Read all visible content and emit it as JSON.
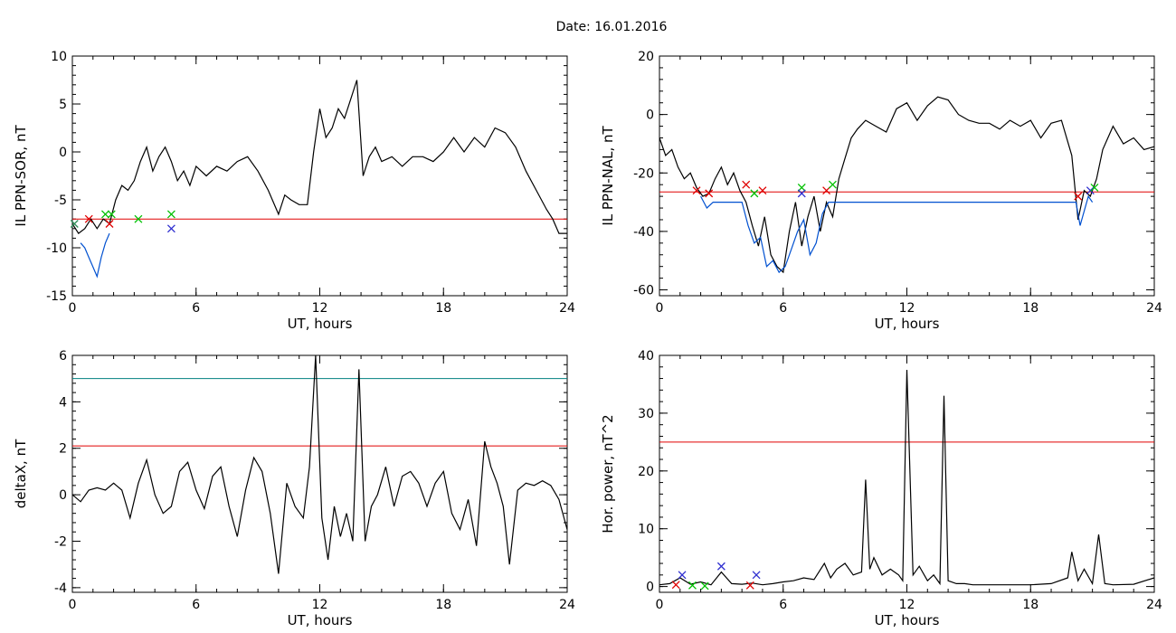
{
  "figure_title": "Date:  16.01.2016",
  "chart_data": [
    {
      "type": "line",
      "xlabel": "UT, hours",
      "ylabel": "IL PPN-SOR, nT",
      "xlim": [
        0,
        24
      ],
      "ylim": [
        -15,
        10
      ],
      "xticks": [
        0,
        6,
        12,
        18,
        24
      ],
      "xtick_labels": [
        "0",
        "6",
        "12",
        "18",
        "24"
      ],
      "yticks": [
        -15,
        -10,
        -5,
        0,
        5,
        10
      ],
      "ytick_labels": [
        "-15",
        "-10",
        "-5",
        "0",
        "5",
        "10"
      ],
      "thresholds": [
        {
          "value": -7,
          "color": "#e00000"
        }
      ],
      "series": [
        {
          "color": "#000000",
          "x": [
            0,
            0.3,
            0.6,
            0.9,
            1.2,
            1.5,
            1.8,
            2.1,
            2.4,
            2.7,
            3.0,
            3.3,
            3.6,
            3.9,
            4.2,
            4.5,
            4.8,
            5.1,
            5.4,
            5.7,
            6.0,
            6.5,
            7.0,
            7.5,
            8.0,
            8.5,
            9.0,
            9.5,
            10.0,
            10.3,
            10.6,
            11.0,
            11.4,
            11.7,
            12.0,
            12.3,
            12.6,
            12.9,
            13.2,
            13.5,
            13.8,
            14.1,
            14.4,
            14.7,
            15.0,
            15.5,
            16.0,
            16.5,
            17.0,
            17.5,
            18.0,
            18.5,
            19.0,
            19.5,
            20.0,
            20.5,
            21.0,
            21.5,
            22.0,
            22.5,
            23.0,
            23.3,
            23.6,
            24.0
          ],
          "y": [
            -7.5,
            -8.5,
            -8.0,
            -7.0,
            -8.0,
            -7.0,
            -7.5,
            -5.0,
            -3.5,
            -4.0,
            -3.0,
            -1.0,
            0.5,
            -2.0,
            -0.5,
            0.5,
            -1.0,
            -3.0,
            -2.0,
            -3.5,
            -1.5,
            -2.5,
            -1.5,
            -2.0,
            -1.0,
            -0.5,
            -2.0,
            -4.0,
            -6.5,
            -4.5,
            -5.0,
            -5.5,
            -5.5,
            0.0,
            4.5,
            1.5,
            2.5,
            4.5,
            3.5,
            5.5,
            7.5,
            -2.5,
            -0.5,
            0.5,
            -1.0,
            -0.5,
            -1.5,
            -0.5,
            -0.5,
            -1.0,
            0.0,
            1.5,
            0.0,
            1.5,
            0.5,
            2.5,
            2.0,
            0.5,
            -2.0,
            -4.0,
            -6.0,
            -7.0,
            -8.5,
            -8.5
          ]
        },
        {
          "color": "#0050d0",
          "x": [
            0.4,
            0.6,
            0.8,
            1.0,
            1.2,
            1.4,
            1.6,
            1.8
          ],
          "y": [
            -9.5,
            -10.0,
            -11.0,
            -12.0,
            -13.0,
            -11.0,
            -9.5,
            -8.5
          ]
        }
      ],
      "markers": [
        {
          "x": 0.1,
          "y": -7.5,
          "color": "#2e8b57"
        },
        {
          "x": 0.8,
          "y": -7.0,
          "color": "#e00000"
        },
        {
          "x": 1.6,
          "y": -6.5,
          "color": "#00c000"
        },
        {
          "x": 1.8,
          "y": -7.5,
          "color": "#e00000"
        },
        {
          "x": 3.2,
          "y": -7.0,
          "color": "#00c000"
        },
        {
          "x": 4.8,
          "y": -6.5,
          "color": "#00c000"
        },
        {
          "x": 4.8,
          "y": -8.0,
          "color": "#3030d0"
        },
        {
          "x": 1.9,
          "y": -6.5,
          "color": "#00c000"
        }
      ]
    },
    {
      "type": "line",
      "xlabel": "UT, hours",
      "ylabel": "IL PPN-NAL, nT",
      "xlim": [
        0,
        24
      ],
      "ylim": [
        -62,
        20
      ],
      "xticks": [
        0,
        6,
        12,
        18,
        24
      ],
      "xtick_labels": [
        "0",
        "6",
        "12",
        "18",
        "24"
      ],
      "yticks": [
        -60,
        -40,
        -20,
        0,
        20
      ],
      "ytick_labels": [
        "-60",
        "-40",
        "-20",
        "0",
        "20"
      ],
      "thresholds": [
        {
          "value": -26.5,
          "color": "#e00000"
        }
      ],
      "series": [
        {
          "color": "#000000",
          "x": [
            0,
            0.3,
            0.6,
            0.9,
            1.2,
            1.5,
            1.8,
            2.1,
            2.4,
            2.7,
            3.0,
            3.3,
            3.6,
            3.9,
            4.2,
            4.5,
            4.8,
            5.1,
            5.4,
            5.7,
            6.0,
            6.3,
            6.6,
            6.9,
            7.2,
            7.5,
            7.8,
            8.1,
            8.4,
            8.7,
            9.0,
            9.3,
            9.6,
            10.0,
            10.5,
            11.0,
            11.5,
            12.0,
            12.5,
            13.0,
            13.5,
            14.0,
            14.5,
            15.0,
            15.5,
            16.0,
            16.5,
            17.0,
            17.5,
            18.0,
            18.5,
            19.0,
            19.5,
            20.0,
            20.3,
            20.6,
            20.9,
            21.2,
            21.5,
            22.0,
            22.5,
            23.0,
            23.5,
            24.0
          ],
          "y": [
            -8,
            -14,
            -12,
            -18,
            -22,
            -20,
            -25,
            -28,
            -27,
            -22,
            -18,
            -24,
            -20,
            -26,
            -30,
            -38,
            -45,
            -35,
            -48,
            -52,
            -54,
            -40,
            -30,
            -45,
            -35,
            -28,
            -40,
            -30,
            -35,
            -22,
            -15,
            -8,
            -5,
            -2,
            -4,
            -6,
            2,
            4,
            -2,
            3,
            6,
            5,
            0,
            -2,
            -3,
            -3,
            -5,
            -2,
            -4,
            -2,
            -8,
            -3,
            -2,
            -14,
            -36,
            -26,
            -28,
            -22,
            -12,
            -4,
            -10,
            -8,
            -12,
            -11
          ]
        },
        {
          "color": "#0050d0",
          "x": [
            2.0,
            2.3,
            2.6,
            4.0,
            4.3,
            4.6,
            4.9,
            5.2,
            5.5,
            5.8,
            6.1,
            6.4,
            6.7,
            7.0,
            7.3,
            7.6,
            7.9,
            8.2,
            20.2,
            20.4,
            20.8,
            21.0
          ],
          "y": [
            -28,
            -32,
            -30,
            -30,
            -38,
            -44,
            -42,
            -52,
            -50,
            -54,
            -52,
            -46,
            -40,
            -36,
            -48,
            -44,
            -34,
            -30,
            -30,
            -38,
            -28,
            -30
          ]
        }
      ],
      "markers": [
        {
          "x": 1.8,
          "y": -26,
          "color": "#e00000"
        },
        {
          "x": 2.4,
          "y": -27,
          "color": "#e00000"
        },
        {
          "x": 4.2,
          "y": -24,
          "color": "#e00000"
        },
        {
          "x": 4.6,
          "y": -27,
          "color": "#00c000"
        },
        {
          "x": 5.0,
          "y": -26,
          "color": "#e00000"
        },
        {
          "x": 6.9,
          "y": -25,
          "color": "#00c000"
        },
        {
          "x": 6.9,
          "y": -27,
          "color": "#3030d0"
        },
        {
          "x": 8.1,
          "y": -26,
          "color": "#e00000"
        },
        {
          "x": 8.4,
          "y": -24,
          "color": "#00c000"
        },
        {
          "x": 20.3,
          "y": -28,
          "color": "#e00000"
        },
        {
          "x": 20.9,
          "y": -26,
          "color": "#3030d0"
        },
        {
          "x": 21.1,
          "y": -25,
          "color": "#00c000"
        }
      ]
    },
    {
      "type": "line",
      "xlabel": "UT, hours",
      "ylabel": "deltaX, nT",
      "xlim": [
        0,
        24
      ],
      "ylim": [
        -4.2,
        6
      ],
      "xticks": [
        0,
        6,
        12,
        18,
        24
      ],
      "xtick_labels": [
        "0",
        "6",
        "12",
        "18",
        "24"
      ],
      "yticks": [
        -4,
        -2,
        0,
        2,
        4,
        6
      ],
      "ytick_labels": [
        "-4",
        "-2",
        "0",
        "2",
        "4",
        "6"
      ],
      "thresholds": [
        {
          "value": 5.0,
          "color": "#008080"
        },
        {
          "value": 2.1,
          "color": "#e00000"
        }
      ],
      "series": [
        {
          "color": "#000000",
          "x": [
            0,
            0.4,
            0.8,
            1.2,
            1.6,
            2.0,
            2.4,
            2.8,
            3.2,
            3.6,
            4.0,
            4.4,
            4.8,
            5.2,
            5.6,
            6.0,
            6.4,
            6.8,
            7.2,
            7.6,
            8.0,
            8.4,
            8.8,
            9.2,
            9.6,
            10.0,
            10.4,
            10.8,
            11.2,
            11.5,
            11.8,
            12.1,
            12.4,
            12.7,
            13.0,
            13.3,
            13.6,
            13.9,
            14.2,
            14.5,
            14.8,
            15.2,
            15.6,
            16.0,
            16.4,
            16.8,
            17.2,
            17.6,
            18.0,
            18.4,
            18.8,
            19.2,
            19.6,
            20.0,
            20.3,
            20.6,
            20.9,
            21.2,
            21.6,
            22.0,
            22.4,
            22.8,
            23.2,
            23.6,
            24.0
          ],
          "y": [
            0.0,
            -0.3,
            0.2,
            0.3,
            0.2,
            0.5,
            0.2,
            -1.0,
            0.5,
            1.5,
            0.0,
            -0.8,
            -0.5,
            1.0,
            1.4,
            0.2,
            -0.6,
            0.8,
            1.2,
            -0.5,
            -1.8,
            0.2,
            1.6,
            1.0,
            -0.8,
            -3.4,
            0.5,
            -0.5,
            -1.0,
            1.2,
            6.0,
            -1.0,
            -2.8,
            -0.5,
            -1.8,
            -0.8,
            -2.0,
            5.4,
            -2.0,
            -0.5,
            0.0,
            1.2,
            -0.5,
            0.8,
            1.0,
            0.5,
            -0.5,
            0.5,
            1.0,
            -0.8,
            -1.5,
            -0.2,
            -2.2,
            2.3,
            1.2,
            0.5,
            -0.5,
            -3.0,
            0.2,
            0.5,
            0.4,
            0.6,
            0.4,
            -0.2,
            -1.5
          ]
        }
      ]
    },
    {
      "type": "line",
      "xlabel": "UT, hours",
      "ylabel": "Hor. power, nT^2",
      "xlim": [
        0,
        24
      ],
      "ylim": [
        -1,
        40
      ],
      "xticks": [
        0,
        6,
        12,
        18,
        24
      ],
      "xtick_labels": [
        "0",
        "6",
        "12",
        "18",
        "24"
      ],
      "yticks": [
        0,
        10,
        20,
        30,
        40
      ],
      "ytick_labels": [
        "0",
        "10",
        "20",
        "30",
        "40"
      ],
      "thresholds": [
        {
          "value": 25,
          "color": "#e00000"
        }
      ],
      "series": [
        {
          "color": "#000000",
          "x": [
            0,
            0.5,
            1.0,
            1.5,
            2.0,
            2.5,
            3.0,
            3.5,
            4.0,
            4.5,
            5.0,
            5.5,
            6.0,
            6.5,
            7.0,
            7.5,
            8.0,
            8.3,
            8.6,
            9.0,
            9.4,
            9.8,
            10.0,
            10.2,
            10.4,
            10.8,
            11.2,
            11.6,
            11.8,
            12.0,
            12.3,
            12.6,
            13.0,
            13.3,
            13.6,
            13.8,
            14.0,
            14.4,
            14.8,
            15.2,
            16.0,
            17.0,
            18.0,
            19.0,
            19.8,
            20.0,
            20.3,
            20.6,
            21.0,
            21.3,
            21.6,
            22.0,
            23.0,
            24.0
          ],
          "y": [
            0.3,
            0.5,
            1.5,
            0.4,
            0.8,
            0.3,
            2.5,
            0.5,
            0.4,
            0.6,
            0.3,
            0.5,
            0.8,
            1.0,
            1.5,
            1.2,
            4.0,
            1.5,
            3.0,
            4.0,
            2.0,
            2.5,
            18.5,
            3.0,
            5.0,
            2.0,
            3.0,
            2.0,
            1.0,
            37.5,
            2.0,
            3.5,
            1.0,
            2.0,
            0.5,
            33.0,
            1.0,
            0.5,
            0.5,
            0.3,
            0.3,
            0.3,
            0.3,
            0.5,
            1.5,
            6.0,
            1.0,
            3.0,
            0.5,
            9.0,
            0.5,
            0.3,
            0.4,
            1.5
          ]
        }
      ],
      "markers": [
        {
          "x": 1.1,
          "y": 2.0,
          "color": "#3030d0"
        },
        {
          "x": 0.8,
          "y": 0.3,
          "color": "#e00000"
        },
        {
          "x": 1.6,
          "y": 0.2,
          "color": "#00c000"
        },
        {
          "x": 3.0,
          "y": 3.5,
          "color": "#3030d0"
        },
        {
          "x": 4.4,
          "y": 0.2,
          "color": "#e00000"
        },
        {
          "x": 4.7,
          "y": 2.0,
          "color": "#3030d0"
        },
        {
          "x": 2.2,
          "y": 0.1,
          "color": "#00c000"
        }
      ]
    }
  ]
}
